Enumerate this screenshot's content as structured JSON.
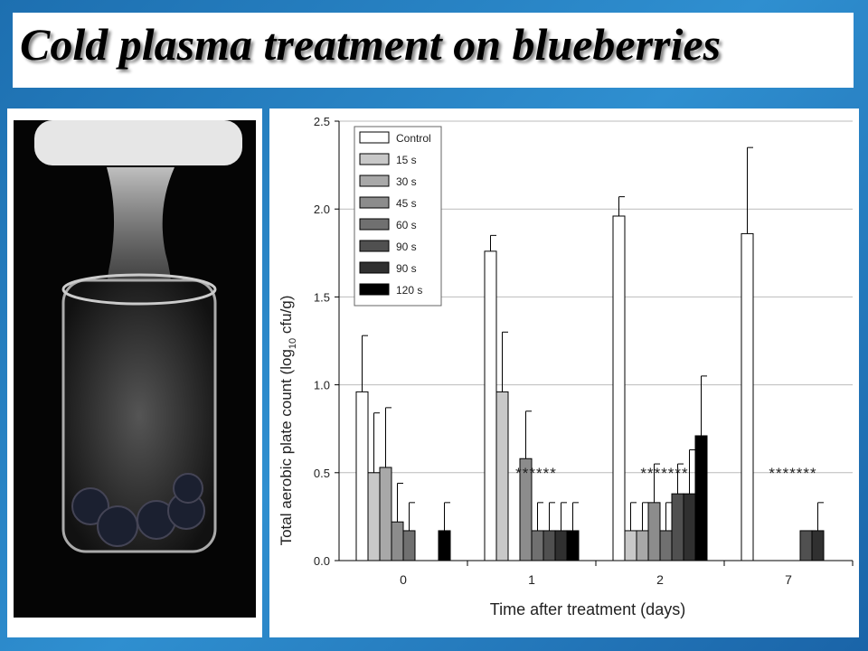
{
  "header": {
    "title": "Cold plasma treatment on blueberries"
  },
  "chart_data": {
    "type": "bar",
    "y_label": "Total aerobic plate count (log",
    "y_label_sub": "10",
    "y_label_end": " cfu/g)",
    "x_label": "Time after treatment (days)",
    "categories": [
      "0",
      "1",
      "2",
      "7"
    ],
    "ylim": [
      0,
      2.5
    ],
    "yticks": [
      {
        "value": 0,
        "label": "0.0"
      },
      0.5,
      {
        "value": 1,
        "label": "1.0"
      },
      1.5,
      {
        "value": 2,
        "label": "2.0"
      },
      2.5
    ],
    "grid": true,
    "series": [
      {
        "name": "Control",
        "color": "#ffffff",
        "values": [
          0.96,
          1.76,
          1.96,
          1.86
        ],
        "errors": [
          0.32,
          0.09,
          0.11,
          0.49
        ]
      },
      {
        "name": "15 s",
        "color": "#c8c8c8",
        "values": [
          0.5,
          0.96,
          0.17,
          null
        ],
        "errors": [
          0.34,
          0.34,
          0.16,
          null
        ]
      },
      {
        "name": "30 s",
        "color": "#a8a8a8",
        "values": [
          0.53,
          null,
          0.17,
          null
        ],
        "errors": [
          0.34,
          null,
          0.16,
          null
        ]
      },
      {
        "name": "45 s",
        "color": "#8c8c8c",
        "values": [
          0.22,
          0.58,
          0.33,
          null
        ],
        "errors": [
          0.22,
          0.27,
          0.22,
          null
        ]
      },
      {
        "name": "60 s",
        "color": "#707070",
        "values": [
          0.17,
          0.17,
          0.17,
          null
        ],
        "errors": [
          0.16,
          0.16,
          0.16,
          null
        ]
      },
      {
        "name": "90 s",
        "color": "#505050",
        "values": [
          null,
          0.17,
          0.38,
          0.17
        ],
        "errors": [
          null,
          0.16,
          0.17,
          null
        ]
      },
      {
        "name": "90 s",
        "color": "#303030",
        "values": [
          null,
          0.17,
          0.38,
          0.17
        ],
        "errors": [
          null,
          0.16,
          0.25,
          0.16
        ]
      },
      {
        "name": "120 s",
        "color": "#000000",
        "values": [
          0.17,
          0.17,
          0.71,
          null
        ],
        "errors": [
          0.16,
          0.16,
          0.34,
          null
        ]
      }
    ],
    "annotations": [
      "******",
      "*******",
      "*******"
    ]
  }
}
